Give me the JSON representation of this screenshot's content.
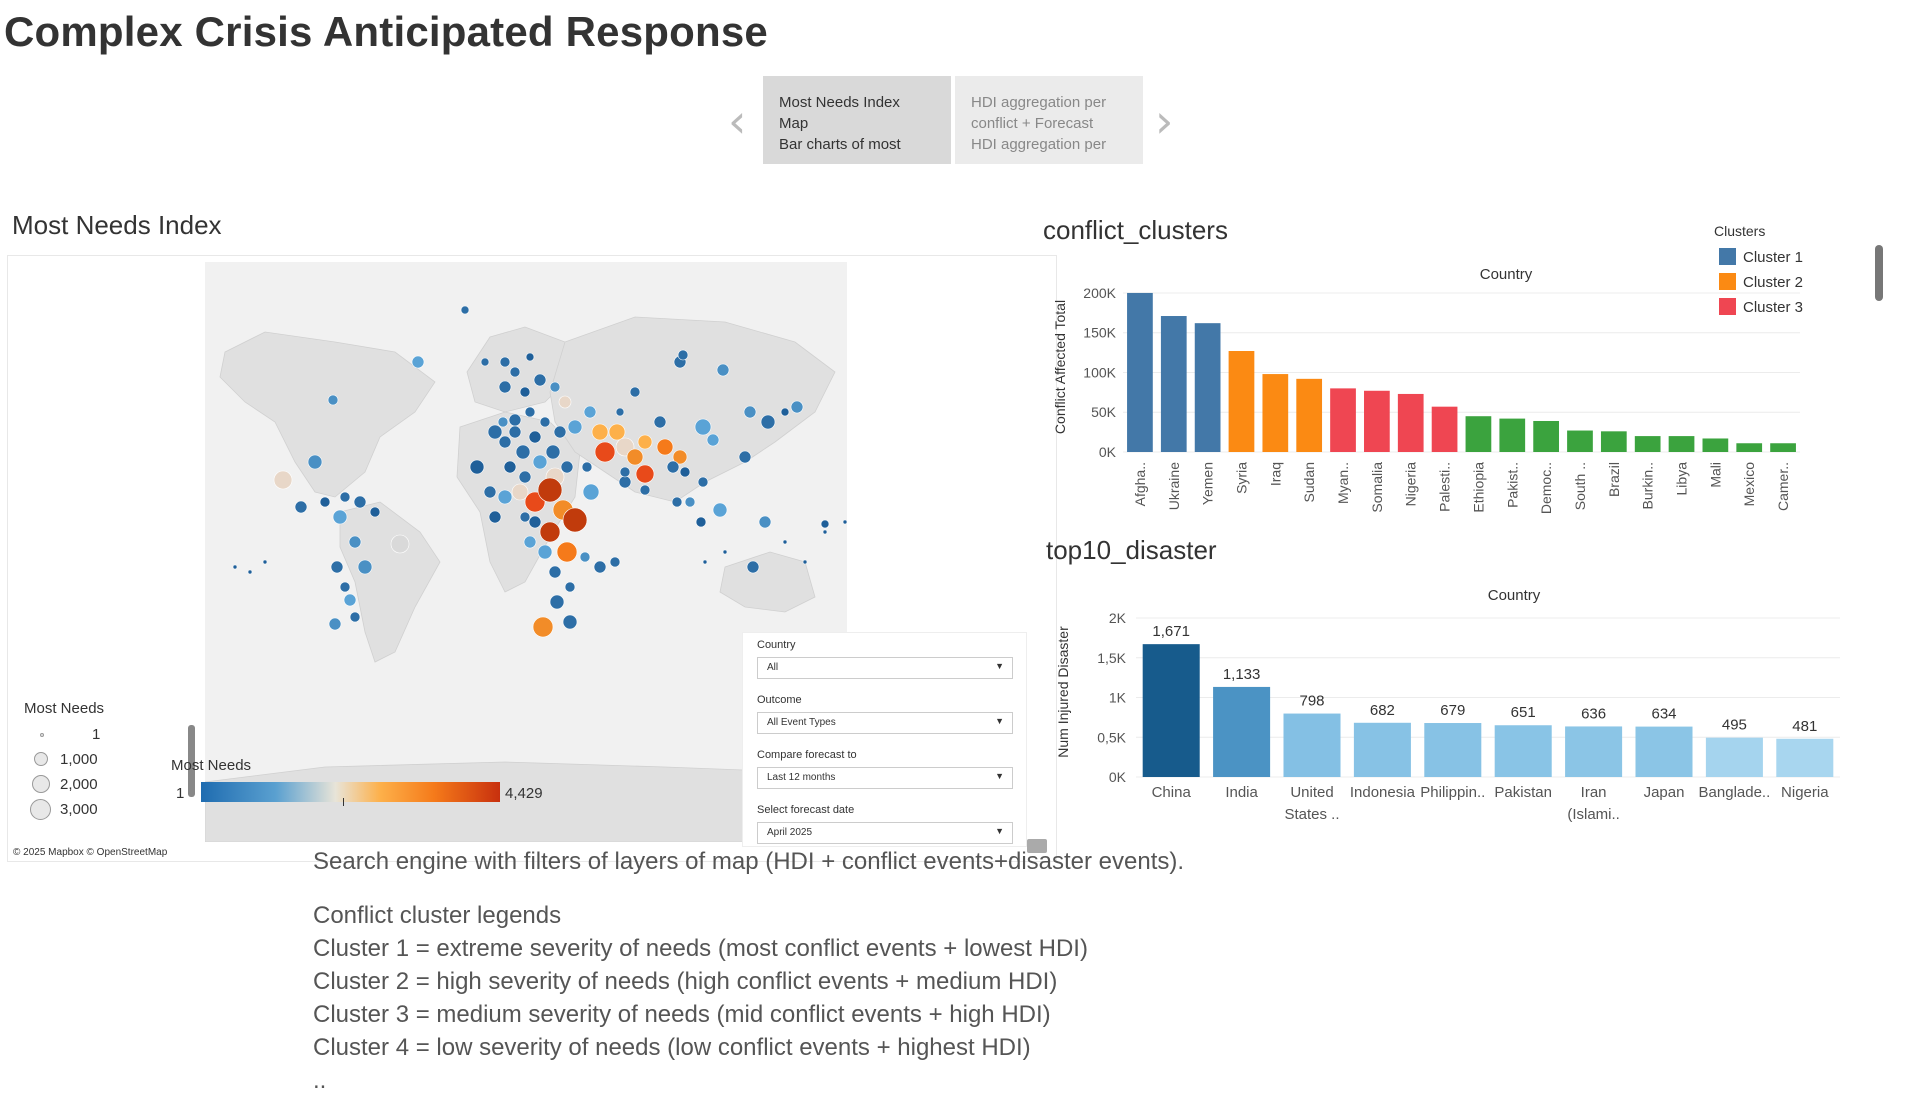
{
  "title": "Complex Crisis Anticipated Response",
  "story": {
    "prev_icon": "chevron-left-icon",
    "next_icon": "chevron-right-icon",
    "points": [
      {
        "line1": "Most Needs Index",
        "line2": "Map",
        "line3": "Bar charts of most"
      },
      {
        "line1": "HDI aggregation per",
        "line2": "conflict + Forecast",
        "line3": "HDI aggregation per"
      }
    ]
  },
  "map": {
    "title": "Most Needs Index",
    "attribution": "© 2025 Mapbox © OpenStreetMap",
    "size_legend": {
      "title": "Most Needs",
      "items": [
        "1",
        "1,000",
        "2,000",
        "3,000"
      ]
    },
    "color_legend": {
      "title": "Most Needs",
      "min": "1",
      "max": "4,429"
    },
    "filters": [
      {
        "label": "Country",
        "value": "All"
      },
      {
        "label": "Outcome",
        "value": "All Event Types"
      },
      {
        "label": "Compare forecast to",
        "value": "Last 12 months"
      },
      {
        "label": "Select forecast date",
        "value": "April 2025"
      }
    ]
  },
  "conflict_chart": {
    "title": "conflict_clusters",
    "legend_title": "Clusters",
    "header": "Country",
    "ylabel": "Conflict Affected Total",
    "ticks": [
      "200K",
      "150K",
      "100K",
      "50K",
      "0K"
    ]
  },
  "disaster_chart": {
    "title": "top10_disaster",
    "header": "Country",
    "ylabel": "Num Injured Disaster",
    "ticks": [
      "2K",
      "1,5K",
      "1K",
      "0,5K",
      "0K"
    ]
  },
  "notes": {
    "line1": "Search engine with filters of layers of map (HDI + conflict events+disaster events).",
    "legend_title": "Conflict cluster legends",
    "c1": "Cluster 1 = extreme severity of needs (most conflict events + lowest HDI)",
    "c2": "Cluster 2 = high severity of needs (high conflict  events + medium HDI)",
    "c3": "Cluster 3 = medium severity of needs (mid conflict events + high HDI)",
    "c4": "Cluster 4 = low severity of needs (low conflict events + highest HDI)",
    "ellipsis": ".."
  },
  "chart_data": [
    {
      "type": "bar",
      "title": "conflict_clusters",
      "xlabel": "Country",
      "ylabel": "Conflict Affected Total",
      "ylim": [
        0,
        210000
      ],
      "categories": [
        "Afgha..",
        "Ukraine",
        "Yemen",
        "Syria",
        "Iraq",
        "Sudan",
        "Myan..",
        "Somalia",
        "Nigeria",
        "Palesti..",
        "Ethiopia",
        "Pakist..",
        "Democ..",
        "South ..",
        "Brazil",
        "Burkin..",
        "Libya",
        "Mali",
        "Mexico",
        "Camer.."
      ],
      "values": [
        200000,
        171000,
        162000,
        127000,
        98000,
        92000,
        80000,
        77000,
        73000,
        57000,
        45000,
        42000,
        39000,
        27000,
        26000,
        20000,
        20000,
        17000,
        11000,
        11000
      ],
      "clusters": [
        "Cluster 1",
        "Cluster 1",
        "Cluster 1",
        "Cluster 2",
        "Cluster 2",
        "Cluster 2",
        "Cluster 3",
        "Cluster 3",
        "Cluster 3",
        "Cluster 3",
        "Cluster 4",
        "Cluster 4",
        "Cluster 4",
        "Cluster 4",
        "Cluster 4",
        "Cluster 4",
        "Cluster 4",
        "Cluster 4",
        "Cluster 4",
        "Cluster 4"
      ],
      "legend": [
        {
          "name": "Cluster 1",
          "color": "#4378a8"
        },
        {
          "name": "Cluster 2",
          "color": "#fb8a13"
        },
        {
          "name": "Cluster 3",
          "color": "#ef4652"
        },
        {
          "name": "",
          "color": "#3ba33e"
        }
      ],
      "legend_position": "top-right"
    },
    {
      "type": "bar",
      "title": "top10_disaster",
      "xlabel": "Country",
      "ylabel": "Num Injured Disaster",
      "ylim": [
        0,
        2000
      ],
      "categories": [
        [
          "China"
        ],
        [
          "India"
        ],
        [
          "United",
          "States .."
        ],
        [
          "Indonesia"
        ],
        [
          "Philippin.."
        ],
        [
          "Pakistan"
        ],
        [
          "Iran",
          "(Islami.."
        ],
        [
          "Japan"
        ],
        [
          "Banglade.."
        ],
        [
          "Nigeria"
        ]
      ],
      "values": [
        1671,
        1133,
        798,
        682,
        679,
        651,
        636,
        634,
        495,
        481
      ],
      "labels": [
        "1,671",
        "1,133",
        "798",
        "682",
        "679",
        "651",
        "636",
        "634",
        "495",
        "481"
      ],
      "colors": [
        "#175b8c",
        "#4b93c4",
        "#84c0e4",
        "#87c2e5",
        "#87c2e5",
        "#89c4e6",
        "#8bc5e6",
        "#8bc5e6",
        "#a5d4ee",
        "#a8d6ef"
      ]
    }
  ]
}
